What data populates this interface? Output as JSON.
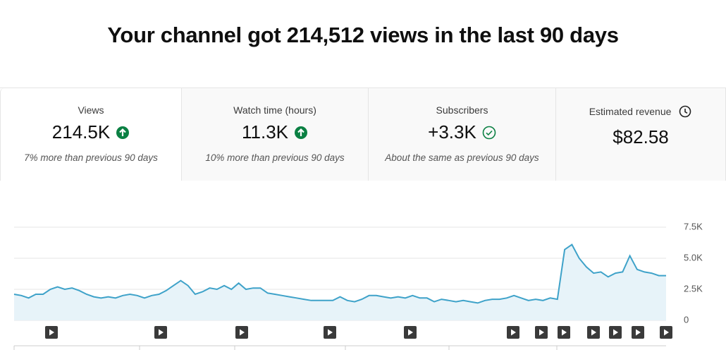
{
  "header": {
    "title": "Your channel got 214,512 views in the last 90 days"
  },
  "cards": [
    {
      "label": "Views",
      "value": "214.5K",
      "note": "7% more than previous 90 days",
      "icon": "up"
    },
    {
      "label": "Watch time (hours)",
      "value": "11.3K",
      "note": "10% more than previous 90 days",
      "icon": "up"
    },
    {
      "label": "Subscribers",
      "value": "+3.3K",
      "note": "About the same as previous 90 days",
      "icon": "check"
    },
    {
      "label": "Estimated revenue",
      "value": "$82.58",
      "icon": "clock"
    }
  ],
  "chart_data": {
    "type": "line",
    "color": "#3ea2c9",
    "fill": "#e7f3f9",
    "grid": true,
    "values": [
      2100,
      2000,
      1800,
      2100,
      2100,
      2500,
      2700,
      2500,
      2600,
      2400,
      2100,
      1900,
      1800,
      1900,
      1800,
      2000,
      2100,
      2000,
      1800,
      2000,
      2100,
      2400,
      2800,
      3200,
      2800,
      2100,
      2300,
      2600,
      2500,
      2800,
      2500,
      3000,
      2500,
      2600,
      2600,
      2200,
      2100,
      2000,
      1900,
      1800,
      1700,
      1600,
      1600,
      1600,
      1600,
      1900,
      1600,
      1500,
      1700,
      2000,
      2000,
      1900,
      1800,
      1900,
      1800,
      2000,
      1800,
      1800,
      1500,
      1700,
      1600,
      1500,
      1600,
      1500,
      1400,
      1600,
      1700,
      1700,
      1800,
      2000,
      1800,
      1600,
      1700,
      1600,
      1800,
      1700,
      5700,
      6100,
      5000,
      4300,
      3800,
      3900,
      3500,
      3800,
      3900,
      5200,
      4100,
      3900,
      3800,
      3600,
      3600
    ],
    "ylim": [
      0,
      7500
    ],
    "yticks": [
      0,
      {
        "value": 2500,
        "label": "2.5K"
      },
      {
        "value": 5000,
        "label": "5.0K"
      },
      {
        "value": 7500,
        "label": "7.5K"
      }
    ]
  }
}
